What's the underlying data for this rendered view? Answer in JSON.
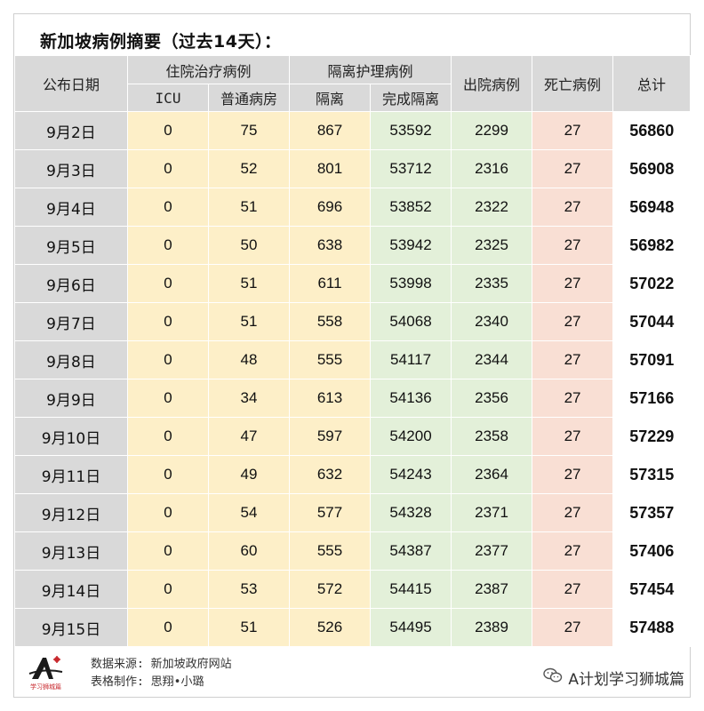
{
  "title": "新加坡病例摘要（过去14天）：",
  "headers": {
    "date": "公布日期",
    "hospital_group": "住院治疗病例",
    "icu": "ICU",
    "general_ward": "普通病房",
    "isolation_group": "隔离护理病例",
    "isolation": "隔离",
    "completed_isolation": "完成隔离",
    "discharged": "出院病例",
    "deaths": "死亡病例",
    "total": "总计"
  },
  "rows": [
    {
      "date": "9月2日",
      "icu": "0",
      "ward": "75",
      "iso": "867",
      "done": "53592",
      "out": "2299",
      "dead": "27",
      "total": "56860"
    },
    {
      "date": "9月3日",
      "icu": "0",
      "ward": "52",
      "iso": "801",
      "done": "53712",
      "out": "2316",
      "dead": "27",
      "total": "56908"
    },
    {
      "date": "9月4日",
      "icu": "0",
      "ward": "51",
      "iso": "696",
      "done": "53852",
      "out": "2322",
      "dead": "27",
      "total": "56948"
    },
    {
      "date": "9月5日",
      "icu": "0",
      "ward": "50",
      "iso": "638",
      "done": "53942",
      "out": "2325",
      "dead": "27",
      "total": "56982"
    },
    {
      "date": "9月6日",
      "icu": "0",
      "ward": "51",
      "iso": "611",
      "done": "53998",
      "out": "2335",
      "dead": "27",
      "total": "57022"
    },
    {
      "date": "9月7日",
      "icu": "0",
      "ward": "51",
      "iso": "558",
      "done": "54068",
      "out": "2340",
      "dead": "27",
      "total": "57044"
    },
    {
      "date": "9月8日",
      "icu": "0",
      "ward": "48",
      "iso": "555",
      "done": "54117",
      "out": "2344",
      "dead": "27",
      "total": "57091"
    },
    {
      "date": "9月9日",
      "icu": "0",
      "ward": "34",
      "iso": "613",
      "done": "54136",
      "out": "2356",
      "dead": "27",
      "total": "57166"
    },
    {
      "date": "9月10日",
      "icu": "0",
      "ward": "47",
      "iso": "597",
      "done": "54200",
      "out": "2358",
      "dead": "27",
      "total": "57229"
    },
    {
      "date": "9月11日",
      "icu": "0",
      "ward": "49",
      "iso": "632",
      "done": "54243",
      "out": "2364",
      "dead": "27",
      "total": "57315"
    },
    {
      "date": "9月12日",
      "icu": "0",
      "ward": "54",
      "iso": "577",
      "done": "54328",
      "out": "2371",
      "dead": "27",
      "total": "57357"
    },
    {
      "date": "9月13日",
      "icu": "0",
      "ward": "60",
      "iso": "555",
      "done": "54387",
      "out": "2377",
      "dead": "27",
      "total": "57406"
    },
    {
      "date": "9月14日",
      "icu": "0",
      "ward": "53",
      "iso": "572",
      "done": "54415",
      "out": "2387",
      "dead": "27",
      "total": "57454"
    },
    {
      "date": "9月15日",
      "icu": "0",
      "ward": "51",
      "iso": "526",
      "done": "54495",
      "out": "2389",
      "dead": "27",
      "total": "57488"
    }
  ],
  "footer": {
    "source": "数据来源: 新加坡政府网站",
    "made_by": "表格制作: 思翔•小璐",
    "logo_text": "学习狮城篇",
    "brand": "A计划学习狮城篇"
  },
  "colors": {
    "header_gray": "#d9d9d9",
    "hospital_yellow": "#fdefc8",
    "isolation_green": "#e3f0d9",
    "death_pink": "#f9dfd4",
    "logo_red": "#c8282d"
  }
}
